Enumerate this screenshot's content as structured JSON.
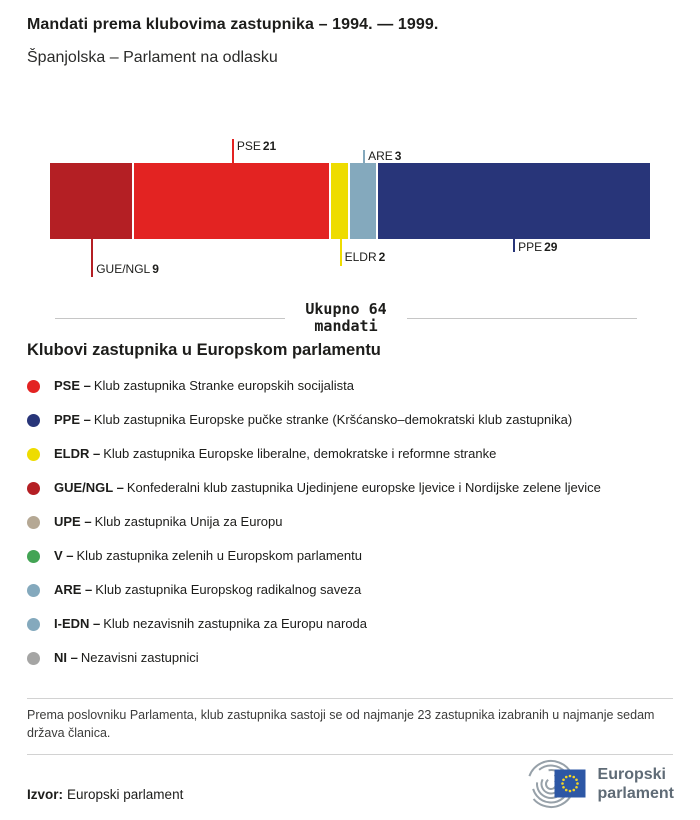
{
  "header": {
    "title": "Mandati prema klubovima zastupnika – 1994. — 1999.",
    "subtitle": "Španjolska – Parlament na odlasku"
  },
  "chart_data": {
    "type": "bar",
    "variant": "horizontal-stacked-seat-bar",
    "title": "Mandati prema klubovima zastupnika – 1994. — 1999.",
    "subtitle": "Španjolska – Parlament na odlasku",
    "total": 64,
    "segments": [
      {
        "label": "GUE/NGL",
        "value": 9,
        "color": "#b41f24"
      },
      {
        "label": "PSE",
        "value": 21,
        "color": "#e32322"
      },
      {
        "label": "ELDR",
        "value": 2,
        "color": "#eedc00"
      },
      {
        "label": "ARE",
        "value": 3,
        "color": "#84a9bd"
      },
      {
        "label": "PPE",
        "value": 29,
        "color": "#283579"
      }
    ]
  },
  "total_badge": {
    "line1": "Ukupno 64",
    "line2": "mandati"
  },
  "legend": {
    "heading": "Klubovi zastupnika u Europskom parlamentu",
    "items": [
      {
        "abbr": "PSE –",
        "desc": "Klub zastupnika Stranke europskih socijalista",
        "color": "#e32322"
      },
      {
        "abbr": "PPE –",
        "desc": "Klub zastupnika Europske pučke stranke (Kršćansko–demokratski klub zastupnika)",
        "color": "#283579"
      },
      {
        "abbr": "ELDR –",
        "desc": "Klub zastupnika Europske liberalne, demokratske i reformne stranke",
        "color": "#eedc00"
      },
      {
        "abbr": "GUE/NGL –",
        "desc": "Konfederalni klub zastupnika Ujedinjene europske ljevice i Nordijske zelene ljevice",
        "color": "#b41f24"
      },
      {
        "abbr": "UPE –",
        "desc": "Klub zastupnika Unija za Europu",
        "color": "#b5a894"
      },
      {
        "abbr": "V –",
        "desc": "Klub zastupnika zelenih u Europskom parlamentu",
        "color": "#43a454"
      },
      {
        "abbr": "ARE –",
        "desc": "Klub zastupnika Europskog radikalnog saveza",
        "color": "#84a9bd"
      },
      {
        "abbr": "I-EDN –",
        "desc": "Klub nezavisnih zastupnika za Europu naroda",
        "color": "#84a9bd"
      },
      {
        "abbr": "NI –",
        "desc": "Nezavisni zastupnici",
        "color": "#a5a5a4"
      }
    ]
  },
  "footnote": "Prema poslovniku Parlamenta, klub zastupnika sastoji se od najmanje 23 zastupnika izabranih u najmanje sedam država članica.",
  "source": {
    "label": "Izvor:",
    "text": "Europski parlament"
  },
  "logo": {
    "line1": "Europski",
    "line2": "parlament"
  }
}
